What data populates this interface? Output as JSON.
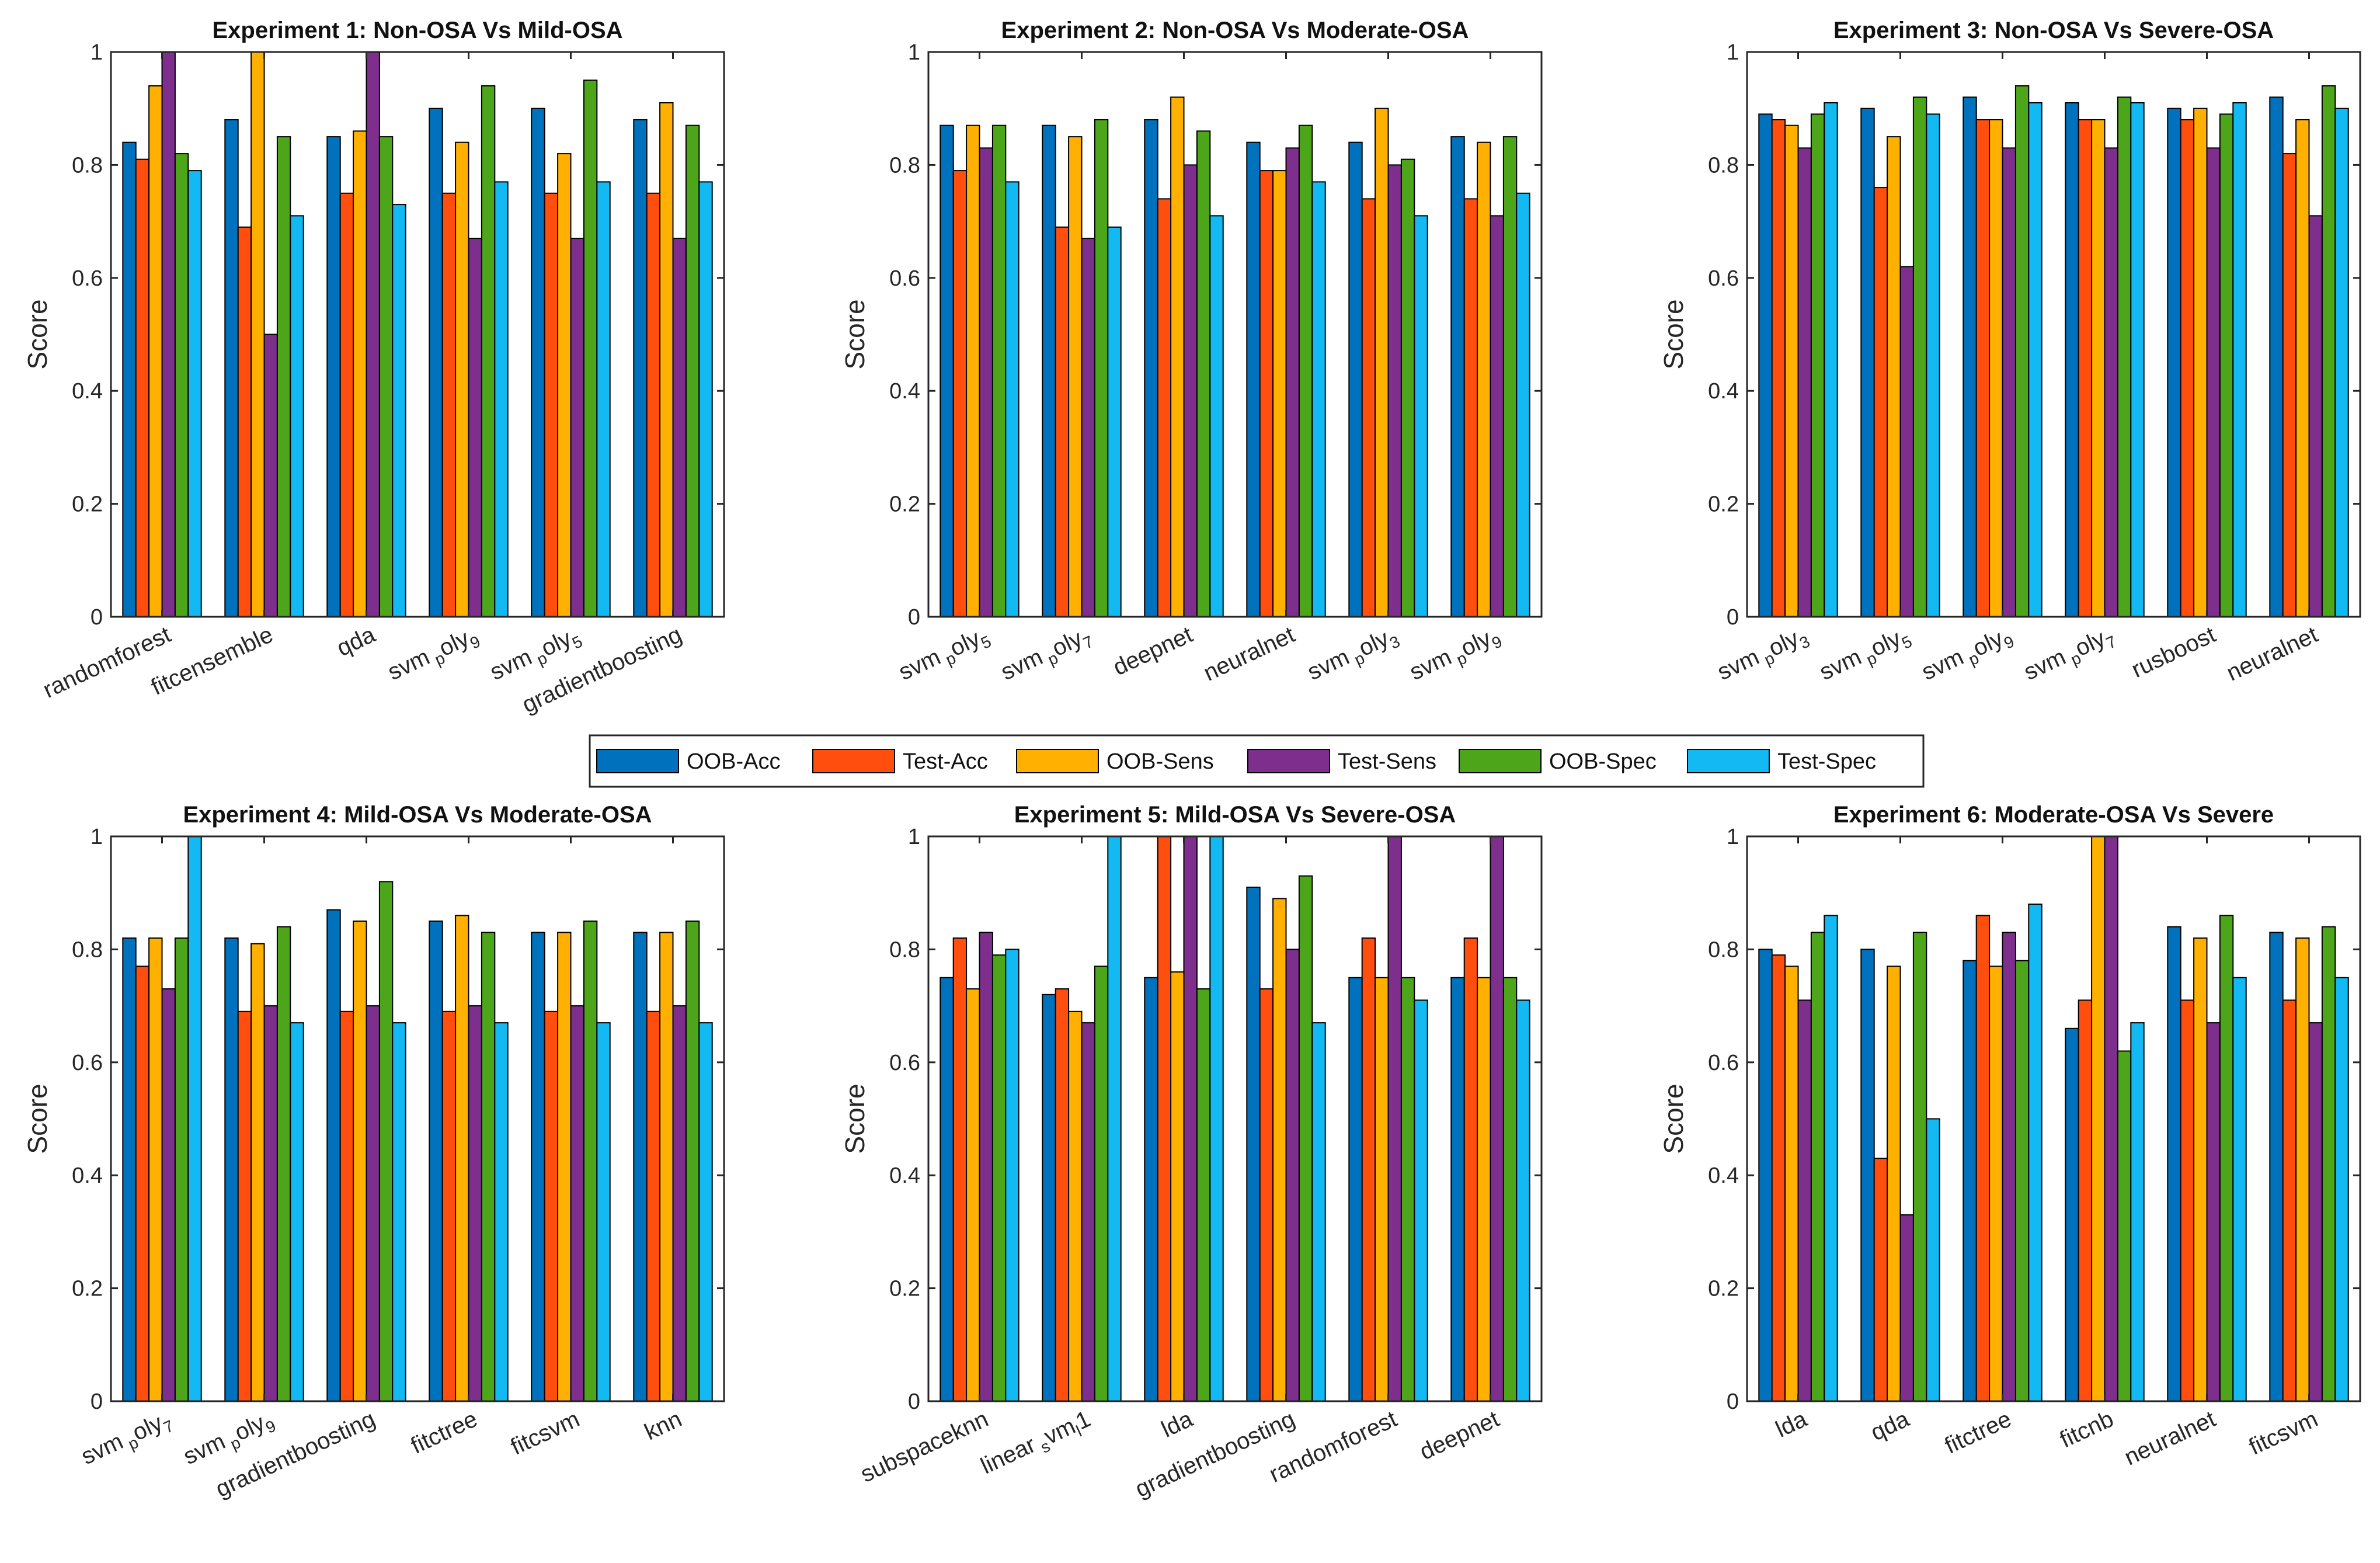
{
  "chart_data": [
    {
      "type": "bar",
      "title": "Experiment 1: Non-OSA Vs Mild-OSA",
      "ylabel": "Score",
      "xlabel": "",
      "ylim": [
        0,
        1
      ],
      "yticks": [
        "0",
        "0.2",
        "0.4",
        "0.6",
        "0.8",
        "1"
      ],
      "categories": [
        "randomforest",
        "fitcensemble",
        "qda",
        "svm_poly_9",
        "svm_poly_5",
        "gradientboosting"
      ],
      "category_labels": [
        {
          "base": "randomforest",
          "sub": "",
          "tail": ""
        },
        {
          "base": "fitcensemble",
          "sub": "",
          "tail": ""
        },
        {
          "base": "qda",
          "sub": "",
          "tail": ""
        },
        {
          "base": "svm",
          "sub": "p",
          "tail": "oly",
          "sub2": "9"
        },
        {
          "base": "svm",
          "sub": "p",
          "tail": "oly",
          "sub2": "5"
        },
        {
          "base": "gradientboosting",
          "sub": "",
          "tail": ""
        }
      ],
      "series": [
        {
          "name": "OOB-Acc",
          "values": [
            0.84,
            0.88,
            0.85,
            0.9,
            0.9,
            0.88
          ]
        },
        {
          "name": "Test-Acc",
          "values": [
            0.81,
            0.69,
            0.75,
            0.75,
            0.75,
            0.75
          ]
        },
        {
          "name": "OOB-Sens",
          "values": [
            0.94,
            1.0,
            0.86,
            0.84,
            0.82,
            0.91
          ]
        },
        {
          "name": "Test-Sens",
          "values": [
            1.0,
            0.5,
            1.0,
            0.67,
            0.67,
            0.67
          ]
        },
        {
          "name": "OOB-Spec",
          "values": [
            0.82,
            0.85,
            0.85,
            0.94,
            0.95,
            0.87
          ]
        },
        {
          "name": "Test-Spec",
          "values": [
            0.79,
            0.71,
            0.73,
            0.77,
            0.77,
            0.77
          ]
        }
      ]
    },
    {
      "type": "bar",
      "title": "Experiment 2: Non-OSA Vs Moderate-OSA",
      "ylabel": "Score",
      "xlabel": "",
      "ylim": [
        0,
        1
      ],
      "yticks": [
        "0",
        "0.2",
        "0.4",
        "0.6",
        "0.8",
        "1"
      ],
      "categories": [
        "svm_poly_5",
        "svm_poly_7",
        "deepnet",
        "neuralnet",
        "svm_poly_3",
        "svm_poly_9"
      ],
      "category_labels": [
        {
          "base": "svm",
          "sub": "p",
          "tail": "oly",
          "sub2": "5"
        },
        {
          "base": "svm",
          "sub": "p",
          "tail": "oly",
          "sub2": "7"
        },
        {
          "base": "deepnet",
          "sub": "",
          "tail": ""
        },
        {
          "base": "neuralnet",
          "sub": "",
          "tail": ""
        },
        {
          "base": "svm",
          "sub": "p",
          "tail": "oly",
          "sub2": "3"
        },
        {
          "base": "svm",
          "sub": "p",
          "tail": "oly",
          "sub2": "9"
        }
      ],
      "series": [
        {
          "name": "OOB-Acc",
          "values": [
            0.87,
            0.87,
            0.88,
            0.84,
            0.84,
            0.85
          ]
        },
        {
          "name": "Test-Acc",
          "values": [
            0.79,
            0.69,
            0.74,
            0.79,
            0.74,
            0.74
          ]
        },
        {
          "name": "OOB-Sens",
          "values": [
            0.87,
            0.85,
            0.92,
            0.79,
            0.9,
            0.84
          ]
        },
        {
          "name": "Test-Sens",
          "values": [
            0.83,
            0.67,
            0.8,
            0.83,
            0.8,
            0.71
          ]
        },
        {
          "name": "OOB-Spec",
          "values": [
            0.87,
            0.88,
            0.86,
            0.87,
            0.81,
            0.85
          ]
        },
        {
          "name": "Test-Spec",
          "values": [
            0.77,
            0.69,
            0.71,
            0.77,
            0.71,
            0.75
          ]
        }
      ]
    },
    {
      "type": "bar",
      "title": "Experiment 3: Non-OSA Vs Severe-OSA",
      "ylabel": "Score",
      "xlabel": "",
      "ylim": [
        0,
        1
      ],
      "yticks": [
        "0",
        "0.2",
        "0.4",
        "0.6",
        "0.8",
        "1"
      ],
      "categories": [
        "svm_poly_3",
        "svm_poly_5",
        "svm_poly_9",
        "svm_poly_7",
        "rusboost",
        "neuralnet"
      ],
      "category_labels": [
        {
          "base": "svm",
          "sub": "p",
          "tail": "oly",
          "sub2": "3"
        },
        {
          "base": "svm",
          "sub": "p",
          "tail": "oly",
          "sub2": "5"
        },
        {
          "base": "svm",
          "sub": "p",
          "tail": "oly",
          "sub2": "9"
        },
        {
          "base": "svm",
          "sub": "p",
          "tail": "oly",
          "sub2": "7"
        },
        {
          "base": "rusboost",
          "sub": "",
          "tail": ""
        },
        {
          "base": "neuralnet",
          "sub": "",
          "tail": ""
        }
      ],
      "series": [
        {
          "name": "OOB-Acc",
          "values": [
            0.89,
            0.9,
            0.92,
            0.91,
            0.9,
            0.92
          ]
        },
        {
          "name": "Test-Acc",
          "values": [
            0.88,
            0.76,
            0.88,
            0.88,
            0.88,
            0.82
          ]
        },
        {
          "name": "OOB-Sens",
          "values": [
            0.87,
            0.85,
            0.88,
            0.88,
            0.9,
            0.88
          ]
        },
        {
          "name": "Test-Sens",
          "values": [
            0.83,
            0.62,
            0.83,
            0.83,
            0.83,
            0.71
          ]
        },
        {
          "name": "OOB-Spec",
          "values": [
            0.89,
            0.92,
            0.94,
            0.92,
            0.89,
            0.94
          ]
        },
        {
          "name": "Test-Spec",
          "values": [
            0.91,
            0.89,
            0.91,
            0.91,
            0.91,
            0.9
          ]
        }
      ]
    },
    {
      "type": "bar",
      "title": "Experiment 4: Mild-OSA Vs Moderate-OSA",
      "ylabel": "Score",
      "xlabel": "",
      "ylim": [
        0,
        1
      ],
      "yticks": [
        "0",
        "0.2",
        "0.4",
        "0.6",
        "0.8",
        "1"
      ],
      "categories": [
        "svm_poly_7",
        "svm_poly_9",
        "gradientboosting",
        "fitctree",
        "fitcsvm",
        "knn"
      ],
      "category_labels": [
        {
          "base": "svm",
          "sub": "p",
          "tail": "oly",
          "sub2": "7"
        },
        {
          "base": "svm",
          "sub": "p",
          "tail": "oly",
          "sub2": "9"
        },
        {
          "base": "gradientboosting",
          "sub": "",
          "tail": ""
        },
        {
          "base": "fitctree",
          "sub": "",
          "tail": ""
        },
        {
          "base": "fitcsvm",
          "sub": "",
          "tail": ""
        },
        {
          "base": "knn",
          "sub": "",
          "tail": ""
        }
      ],
      "series": [
        {
          "name": "OOB-Acc",
          "values": [
            0.82,
            0.82,
            0.87,
            0.85,
            0.83,
            0.83
          ]
        },
        {
          "name": "Test-Acc",
          "values": [
            0.77,
            0.69,
            0.69,
            0.69,
            0.69,
            0.69
          ]
        },
        {
          "name": "OOB-Sens",
          "values": [
            0.82,
            0.81,
            0.85,
            0.86,
            0.83,
            0.83
          ]
        },
        {
          "name": "Test-Sens",
          "values": [
            0.73,
            0.7,
            0.7,
            0.7,
            0.7,
            0.7
          ]
        },
        {
          "name": "OOB-Spec",
          "values": [
            0.82,
            0.84,
            0.92,
            0.83,
            0.85,
            0.85
          ]
        },
        {
          "name": "Test-Spec",
          "values": [
            1.0,
            0.67,
            0.67,
            0.67,
            0.67,
            0.67
          ]
        }
      ]
    },
    {
      "type": "bar",
      "title": "Experiment 5: Mild-OSA Vs Severe-OSA",
      "ylabel": "Score",
      "xlabel": "",
      "ylim": [
        0,
        1
      ],
      "yticks": [
        "0",
        "0.2",
        "0.4",
        "0.6",
        "0.8",
        "1"
      ],
      "categories": [
        "subspaceknn",
        "linear_svm_l1",
        "lda",
        "gradientboosting",
        "randomforest",
        "deepnet"
      ],
      "category_labels": [
        {
          "base": "subspaceknn",
          "sub": "",
          "tail": ""
        },
        {
          "base": "linear",
          "sub": "s",
          "tail": "vm",
          "sub2": "l",
          "end": "1"
        },
        {
          "base": "lda",
          "sub": "",
          "tail": ""
        },
        {
          "base": "gradientboosting",
          "sub": "",
          "tail": ""
        },
        {
          "base": "randomforest",
          "sub": "",
          "tail": ""
        },
        {
          "base": "deepnet",
          "sub": "",
          "tail": ""
        }
      ],
      "series": [
        {
          "name": "OOB-Acc",
          "values": [
            0.75,
            0.72,
            0.75,
            0.91,
            0.75,
            0.75
          ]
        },
        {
          "name": "Test-Acc",
          "values": [
            0.82,
            0.73,
            1.0,
            0.73,
            0.82,
            0.82
          ]
        },
        {
          "name": "OOB-Sens",
          "values": [
            0.73,
            0.69,
            0.76,
            0.89,
            0.75,
            0.75
          ]
        },
        {
          "name": "Test-Sens",
          "values": [
            0.83,
            0.67,
            1.0,
            0.8,
            1.0,
            1.0
          ]
        },
        {
          "name": "OOB-Spec",
          "values": [
            0.79,
            0.77,
            0.73,
            0.93,
            0.75,
            0.75
          ]
        },
        {
          "name": "Test-Spec",
          "values": [
            0.8,
            1.0,
            1.0,
            0.67,
            0.71,
            0.71
          ]
        }
      ]
    },
    {
      "type": "bar",
      "title": "Experiment 6: Moderate-OSA Vs Severe",
      "ylabel": "Score",
      "xlabel": "",
      "ylim": [
        0,
        1
      ],
      "yticks": [
        "0",
        "0.2",
        "0.4",
        "0.6",
        "0.8",
        "1"
      ],
      "categories": [
        "lda",
        "qda",
        "fitctree",
        "fitcnb",
        "neuralnet",
        "fitcsvm"
      ],
      "category_labels": [
        {
          "base": "lda",
          "sub": "",
          "tail": ""
        },
        {
          "base": "qda",
          "sub": "",
          "tail": ""
        },
        {
          "base": "fitctree",
          "sub": "",
          "tail": ""
        },
        {
          "base": "fitcnb",
          "sub": "",
          "tail": ""
        },
        {
          "base": "neuralnet",
          "sub": "",
          "tail": ""
        },
        {
          "base": "fitcsvm",
          "sub": "",
          "tail": ""
        }
      ],
      "series": [
        {
          "name": "OOB-Acc",
          "values": [
            0.8,
            0.8,
            0.78,
            0.66,
            0.84,
            0.83
          ]
        },
        {
          "name": "Test-Acc",
          "values": [
            0.79,
            0.43,
            0.86,
            0.71,
            0.71,
            0.71
          ]
        },
        {
          "name": "OOB-Sens",
          "values": [
            0.77,
            0.77,
            0.77,
            1.0,
            0.82,
            0.82
          ]
        },
        {
          "name": "Test-Sens",
          "values": [
            0.71,
            0.33,
            0.83,
            1.0,
            0.67,
            0.67
          ]
        },
        {
          "name": "OOB-Spec",
          "values": [
            0.83,
            0.83,
            0.78,
            0.62,
            0.86,
            0.84
          ]
        },
        {
          "name": "Test-Spec",
          "values": [
            0.86,
            0.5,
            0.88,
            0.67,
            0.75,
            0.75
          ]
        }
      ]
    }
  ],
  "legend": {
    "entries": [
      "OOB-Acc",
      "Test-Acc",
      "OOB-Sens",
      "Test-Sens",
      "OOB-Spec",
      "Test-Spec"
    ],
    "colors": [
      "#0072BD",
      "#FF4E0D",
      "#FFB000",
      "#7E2F8E",
      "#4DA519",
      "#12B9F2"
    ],
    "placement": "center"
  }
}
